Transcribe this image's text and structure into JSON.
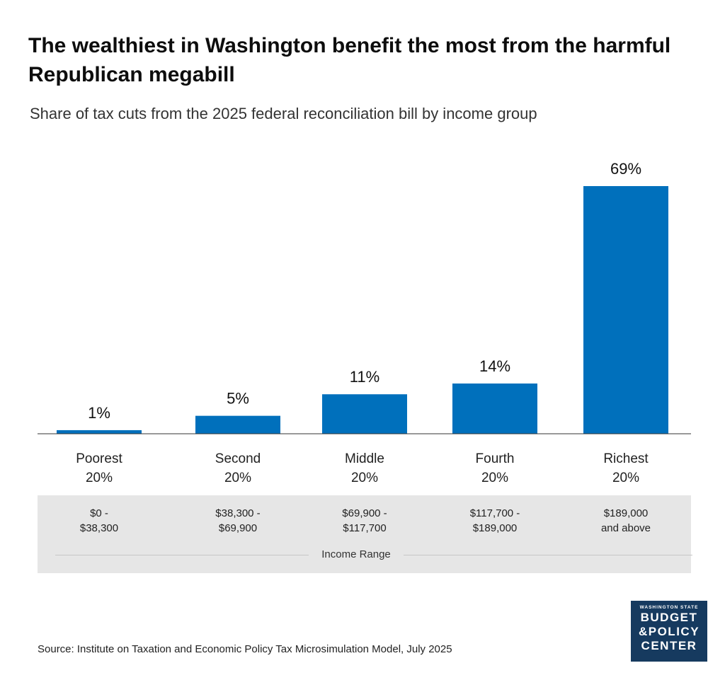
{
  "title": "The wealthiest in Washington benefit the most from the harmful Republican megabill",
  "subtitle": "Share of tax cuts from the 2025 federal reconciliation bill by income group",
  "chart_data": {
    "type": "bar",
    "categories": [
      "Poorest\n20%",
      "Second\n20%",
      "Middle\n20%",
      "Fourth\n20%",
      "Richest\n20%"
    ],
    "values": [
      1,
      5,
      11,
      14,
      69
    ],
    "value_labels": [
      "1%",
      "5%",
      "11%",
      "14%",
      "69%"
    ],
    "ylim": [
      0,
      69
    ],
    "grid": false,
    "bar_color": "#0070bc",
    "income_ranges": [
      "$0 -\n$38,300",
      "$38,300 -\n$69,900",
      "$69,900 -\n$117,700",
      "$117,700 -\n$189,000",
      "$189,000\nand above"
    ],
    "income_range_label": "Income Range"
  },
  "source": "Source: Institute on Taxation and Economic Policy Tax Microsimulation Model, July 2025",
  "logo": {
    "line1": "WASHINGTON STATE",
    "line2": "BUDGET",
    "line3": "&POLICY",
    "line4": "CENTER",
    "background": "#163a5f"
  }
}
